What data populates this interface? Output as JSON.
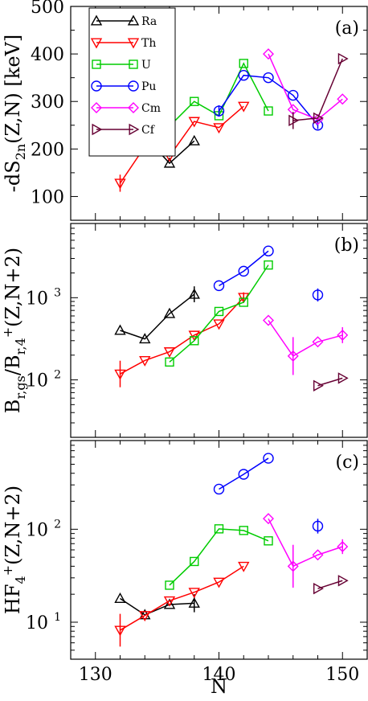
{
  "chart_data": [
    {
      "panel": "(a)",
      "type": "line",
      "ylabel": "-dS2n(Z,N)  [keV]",
      "ylabel_parts": [
        "-dS",
        "2n",
        "(Z,N)  [keV]"
      ],
      "xlim": [
        128,
        152
      ],
      "ylim": [
        50,
        500
      ],
      "yscale": "linear",
      "yticks": [
        "100",
        "200",
        "300",
        "400",
        "500"
      ],
      "legend": {
        "placement": "top-left"
      },
      "series": [
        {
          "name": "Ra",
          "color": "#000000",
          "marker": "triangle-up",
          "x": [
            132,
            134,
            136,
            138
          ],
          "y": [
            217,
            226,
            170,
            217
          ],
          "err": [
            [
              134,
              8
            ]
          ]
        },
        {
          "name": "Th",
          "color": "#ff0000",
          "marker": "triangle-down",
          "x": [
            132,
            134,
            136,
            138,
            140,
            142
          ],
          "y": [
            128,
            205,
            185,
            258,
            245,
            290
          ],
          "err": [
            [
              132,
              18
            ]
          ]
        },
        {
          "name": "U",
          "color": "#00cc00",
          "marker": "square",
          "x": [
            136,
            138,
            140,
            142,
            144
          ],
          "y": [
            248,
            300,
            270,
            380,
            280
          ],
          "err": [
            [
              136,
              10
            ]
          ]
        },
        {
          "name": "Pu",
          "color": "#0000ff",
          "marker": "circle",
          "x": [
            140,
            142,
            144,
            146,
            148
          ],
          "y": [
            280,
            355,
            350,
            313,
            250
          ],
          "err": [
            [
              140,
              12
            ],
            [
              148,
              8
            ]
          ]
        },
        {
          "name": "Cm",
          "color": "#ff00ff",
          "marker": "diamond",
          "x": [
            144,
            146,
            148,
            150
          ],
          "y": [
            400,
            283,
            262,
            305
          ],
          "err": []
        },
        {
          "name": "Cf",
          "color": "#660033",
          "marker": "triangle-right",
          "x": [
            146,
            148,
            150
          ],
          "y": [
            260,
            265,
            390
          ],
          "err": [
            [
              146,
              18
            ]
          ]
        }
      ]
    },
    {
      "panel": "(b)",
      "type": "line",
      "ylabel": "Br,gs/Br,4+(Z,N+2)",
      "ylabel_parts": [
        "B",
        "r,gs",
        "/B",
        "r,4",
        "+",
        "(Z,N+2)"
      ],
      "xlim": [
        128,
        152
      ],
      "ylim": [
        20,
        8000
      ],
      "yscale": "log",
      "yticks_log": [
        {
          "value": 100,
          "base": "10",
          "exp": "2"
        },
        {
          "value": 1000,
          "base": "10",
          "exp": "3"
        }
      ],
      "series": [
        {
          "name": "Ra",
          "color": "#000000",
          "marker": "triangle-up",
          "x": [
            132,
            134,
            136,
            138
          ],
          "y": [
            400,
            315,
            640,
            1100
          ],
          "err": [
            [
              138,
              "1.25"
            ]
          ]
        },
        {
          "name": "Th",
          "color": "#ff0000",
          "marker": "triangle-down",
          "x": [
            132,
            134,
            136,
            138,
            140,
            142
          ],
          "y": [
            118,
            172,
            220,
            350,
            480,
            1010
          ],
          "err": [
            [
              132,
              "1.45"
            ],
            [
              142,
              "1.15"
            ]
          ]
        },
        {
          "name": "U",
          "color": "#00cc00",
          "marker": "square",
          "x": [
            136,
            138,
            140,
            142,
            144
          ],
          "y": [
            165,
            300,
            680,
            880,
            2500
          ],
          "err": []
        },
        {
          "name": "Pu",
          "color": "#0000ff",
          "marker": "circle",
          "x": [
            140,
            142,
            144,
            146,
            148
          ],
          "y": [
            1400,
            2100,
            3700,
            null,
            1080
          ],
          "err": [
            [
              148,
              "1.2"
            ]
          ]
        },
        {
          "name": "Cm",
          "color": "#ff00ff",
          "marker": "diamond",
          "x": [
            144,
            146,
            148,
            150
          ],
          "y": [
            530,
            195,
            290,
            350
          ],
          "err": [
            [
              146,
              "1.7"
            ],
            [
              150,
              "1.25"
            ]
          ]
        },
        {
          "name": "Cf",
          "color": "#660033",
          "marker": "triangle-right",
          "x": [
            148,
            150
          ],
          "y": [
            85,
            105
          ],
          "err": []
        }
      ]
    },
    {
      "panel": "(c)",
      "type": "line",
      "ylabel": "HF4+(Z,N+2)",
      "ylabel_parts": [
        "HF",
        "4",
        "+",
        "(Z,N+2)"
      ],
      "xlabel": "N",
      "xlim": [
        128,
        152
      ],
      "ylim": [
        4,
        900
      ],
      "yscale": "log",
      "xticks": [
        "130",
        "140",
        "150"
      ],
      "yticks_log": [
        {
          "value": 10,
          "base": "10",
          "exp": "1"
        },
        {
          "value": 100,
          "base": "10",
          "exp": "2"
        }
      ],
      "series": [
        {
          "name": "Ra",
          "color": "#000000",
          "marker": "triangle-up",
          "x": [
            132,
            134,
            136,
            138
          ],
          "y": [
            18,
            12,
            15.5,
            16
          ],
          "err": [
            [
              138,
              "1.25"
            ]
          ]
        },
        {
          "name": "Th",
          "color": "#ff0000",
          "marker": "triangle-down",
          "x": [
            132,
            134,
            136,
            138,
            140,
            142
          ],
          "y": [
            8.2,
            11.8,
            17,
            21,
            27,
            40
          ],
          "err": [
            [
              132,
              "1.5"
            ]
          ]
        },
        {
          "name": "U",
          "color": "#00cc00",
          "marker": "square",
          "x": [
            136,
            138,
            140,
            142,
            144
          ],
          "y": [
            25,
            45,
            101,
            97,
            75
          ],
          "err": []
        },
        {
          "name": "Pu",
          "color": "#0000ff",
          "marker": "circle",
          "x": [
            140,
            142,
            144,
            146,
            148
          ],
          "y": [
            270,
            390,
            580,
            null,
            108
          ],
          "err": [
            [
              148,
              "1.2"
            ]
          ]
        },
        {
          "name": "Cm",
          "color": "#ff00ff",
          "marker": "diamond",
          "x": [
            144,
            146,
            148,
            150
          ],
          "y": [
            130,
            40,
            53,
            65
          ],
          "err": [
            [
              146,
              "1.7"
            ],
            [
              150,
              "1.2"
            ]
          ]
        },
        {
          "name": "Cf",
          "color": "#660033",
          "marker": "triangle-right",
          "x": [
            148,
            150
          ],
          "y": [
            23,
            28
          ],
          "err": []
        }
      ]
    }
  ]
}
